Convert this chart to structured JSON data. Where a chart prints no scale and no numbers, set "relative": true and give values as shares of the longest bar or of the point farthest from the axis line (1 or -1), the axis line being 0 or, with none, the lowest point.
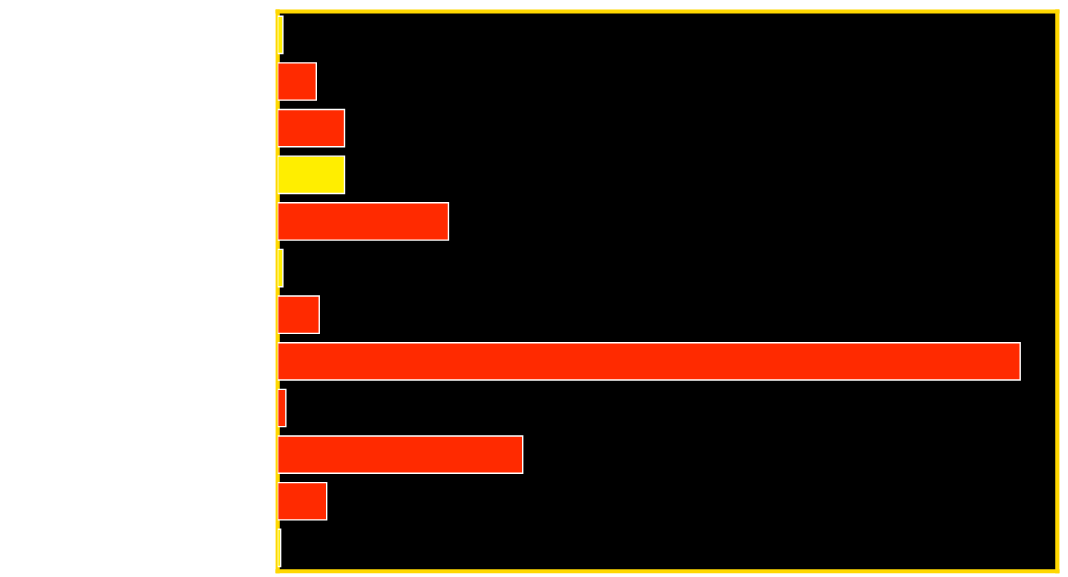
{
  "chart_data": {
    "type": "bar",
    "orientation": "horizontal",
    "relative": true,
    "categories": [
      null,
      null,
      null,
      null,
      null,
      null,
      null,
      null,
      null,
      null,
      null,
      null
    ],
    "values": [
      0.007,
      0.052,
      0.09,
      0.09,
      0.23,
      0.007,
      0.056,
      1.0,
      0.011,
      0.33,
      0.066,
      0.004
    ],
    "colors": [
      "#ffee00",
      "#ff2a00",
      "#ff2a00",
      "#ffee00",
      "#ff2a00",
      "#ffee00",
      "#ff2a00",
      "#ff2a00",
      "#ff2a00",
      "#ff2a00",
      "#ff2a00",
      "#ffee00"
    ],
    "grid": false
  }
}
